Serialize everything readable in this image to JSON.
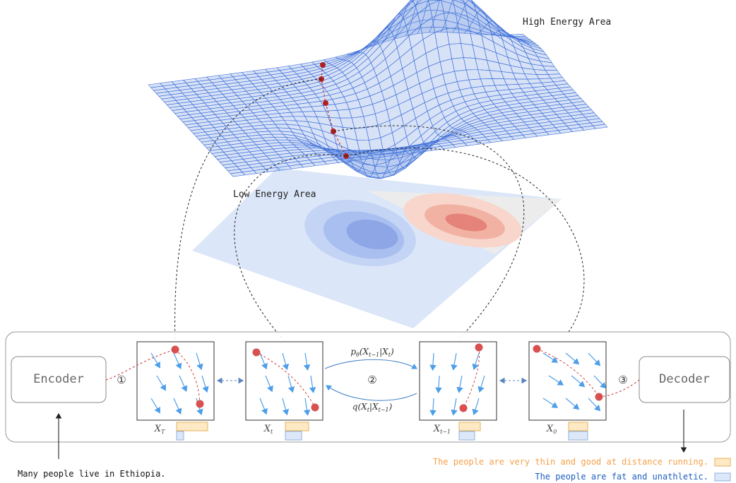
{
  "annotations": {
    "high_energy": "High Energy Area",
    "low_energy": "Low Energy Area"
  },
  "encoder": "Encoder",
  "decoder": "Decoder",
  "steps": [
    "①",
    "②",
    "③"
  ],
  "states": [
    [
      {
        "text": "X",
        "sub": "T"
      }
    ],
    [
      {
        "text": "X",
        "sub": "t"
      }
    ],
    [
      {
        "text": "X",
        "sub": "t−1"
      }
    ],
    [
      {
        "text": "X",
        "sub": "0"
      }
    ]
  ],
  "reverse_transition": [
    {
      "text": "p",
      "sub": "θ"
    },
    {
      "text": "(X",
      "sub": "t−1"
    },
    {
      "text": "|X",
      "sub": "t"
    },
    {
      "text": ")"
    }
  ],
  "forward_transition": [
    {
      "text": "q(X",
      "sub": "t"
    },
    {
      "text": "|X",
      "sub": "t−1"
    },
    {
      "text": ")"
    }
  ],
  "input_text": "Many people live in Ethiopia.",
  "outputs": [
    "The people are very thin and good at distance running.",
    "The people are fat and unathletic."
  ]
}
